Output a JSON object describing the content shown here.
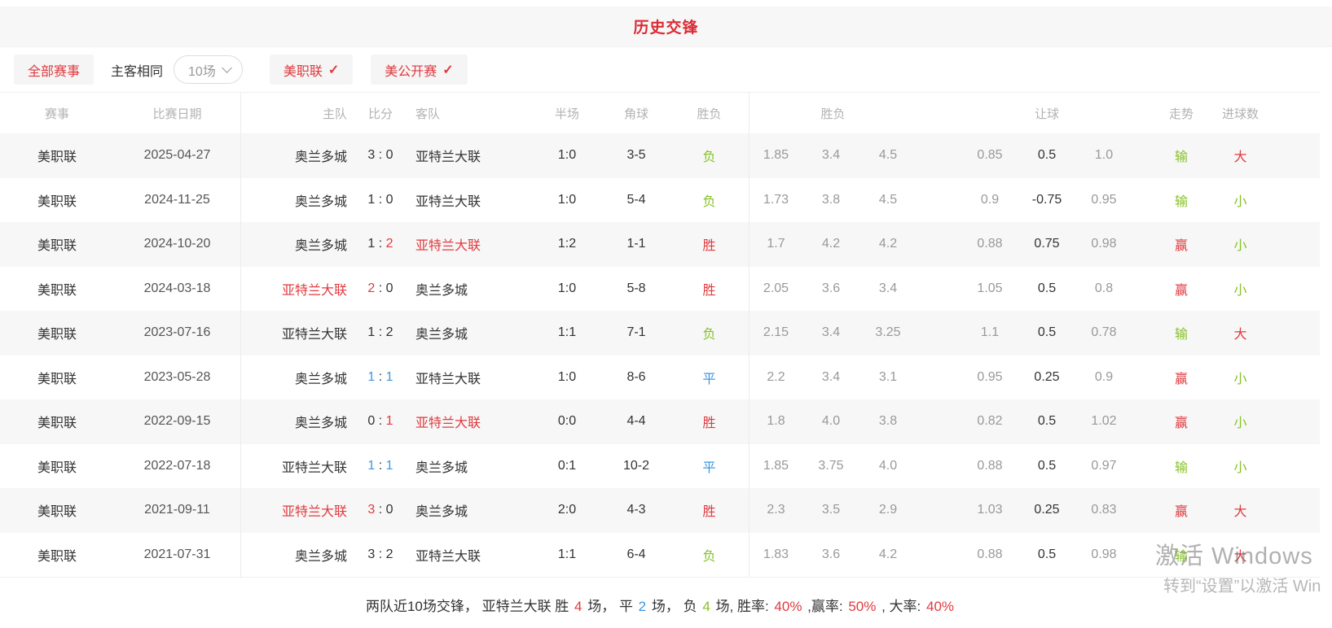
{
  "title": "历史交锋",
  "colors": {
    "red": "#e03a3f",
    "green": "#85c226",
    "blue": "#3d96e0",
    "accent_title": "#dc2b33"
  },
  "filters": {
    "all_matches": "全部赛事",
    "same_home_away": "主客相同",
    "count_dropdown_value": "10场",
    "league_mls": "美职联",
    "league_us_open": "美公开赛",
    "check_glyph": "✓"
  },
  "table": {
    "headers": {
      "league": "赛事",
      "date": "比赛日期",
      "home": "主队",
      "score": "比分",
      "away": "客队",
      "half": "半场",
      "corner": "角球",
      "result": "胜负",
      "odds_group": "胜负",
      "handicap_group": "让球",
      "trend": "走势",
      "goals": "进球数"
    },
    "rows": [
      {
        "league": "美职联",
        "date": "2025-04-27",
        "home": "奥兰多城",
        "home_color": "dark",
        "score": [
          "3",
          "0"
        ],
        "score_colors": [
          "dark",
          "dark"
        ],
        "away": "亚特兰大联",
        "away_color": "dark",
        "half": "1:0",
        "corner": "3-5",
        "result": "负",
        "result_color": "green",
        "win_odds": [
          "1.85",
          "3.4",
          "4.5"
        ],
        "handicap": [
          "0.85",
          "0.5",
          "1.0"
        ],
        "trend": "输",
        "trend_color": "green",
        "goals": "大",
        "goals_color": "red"
      },
      {
        "league": "美职联",
        "date": "2024-11-25",
        "home": "奥兰多城",
        "home_color": "dark",
        "score": [
          "1",
          "0"
        ],
        "score_colors": [
          "dark",
          "dark"
        ],
        "away": "亚特兰大联",
        "away_color": "dark",
        "half": "1:0",
        "corner": "5-4",
        "result": "负",
        "result_color": "green",
        "win_odds": [
          "1.73",
          "3.8",
          "4.5"
        ],
        "handicap": [
          "0.9",
          "-0.75",
          "0.95"
        ],
        "trend": "输",
        "trend_color": "green",
        "goals": "小",
        "goals_color": "green"
      },
      {
        "league": "美职联",
        "date": "2024-10-20",
        "home": "奥兰多城",
        "home_color": "dark",
        "score": [
          "1",
          "2"
        ],
        "score_colors": [
          "dark",
          "red"
        ],
        "away": "亚特兰大联",
        "away_color": "red",
        "half": "1:2",
        "corner": "1-1",
        "result": "胜",
        "result_color": "red",
        "win_odds": [
          "1.7",
          "4.2",
          "4.2"
        ],
        "handicap": [
          "0.88",
          "0.75",
          "0.98"
        ],
        "trend": "赢",
        "trend_color": "red",
        "goals": "小",
        "goals_color": "green"
      },
      {
        "league": "美职联",
        "date": "2024-03-18",
        "home": "亚特兰大联",
        "home_color": "red",
        "score": [
          "2",
          "0"
        ],
        "score_colors": [
          "red",
          "dark"
        ],
        "away": "奥兰多城",
        "away_color": "dark",
        "half": "1:0",
        "corner": "5-8",
        "result": "胜",
        "result_color": "red",
        "win_odds": [
          "2.05",
          "3.6",
          "3.4"
        ],
        "handicap": [
          "1.05",
          "0.5",
          "0.8"
        ],
        "trend": "赢",
        "trend_color": "red",
        "goals": "小",
        "goals_color": "green"
      },
      {
        "league": "美职联",
        "date": "2023-07-16",
        "home": "亚特兰大联",
        "home_color": "dark",
        "score": [
          "1",
          "2"
        ],
        "score_colors": [
          "dark",
          "dark"
        ],
        "away": "奥兰多城",
        "away_color": "dark",
        "half": "1:1",
        "corner": "7-1",
        "result": "负",
        "result_color": "green",
        "win_odds": [
          "2.15",
          "3.4",
          "3.25"
        ],
        "handicap": [
          "1.1",
          "0.5",
          "0.78"
        ],
        "trend": "输",
        "trend_color": "green",
        "goals": "大",
        "goals_color": "red"
      },
      {
        "league": "美职联",
        "date": "2023-05-28",
        "home": "奥兰多城",
        "home_color": "dark",
        "score": [
          "1",
          "1"
        ],
        "score_colors": [
          "blue",
          "blue"
        ],
        "away": "亚特兰大联",
        "away_color": "dark",
        "half": "1:0",
        "corner": "8-6",
        "result": "平",
        "result_color": "blue",
        "win_odds": [
          "2.2",
          "3.4",
          "3.1"
        ],
        "handicap": [
          "0.95",
          "0.25",
          "0.9"
        ],
        "trend": "赢",
        "trend_color": "red",
        "goals": "小",
        "goals_color": "green"
      },
      {
        "league": "美职联",
        "date": "2022-09-15",
        "home": "奥兰多城",
        "home_color": "dark",
        "score": [
          "0",
          "1"
        ],
        "score_colors": [
          "dark",
          "red"
        ],
        "away": "亚特兰大联",
        "away_color": "red",
        "half": "0:0",
        "corner": "4-4",
        "result": "胜",
        "result_color": "red",
        "win_odds": [
          "1.8",
          "4.0",
          "3.8"
        ],
        "handicap": [
          "0.82",
          "0.5",
          "1.02"
        ],
        "trend": "赢",
        "trend_color": "red",
        "goals": "小",
        "goals_color": "green"
      },
      {
        "league": "美职联",
        "date": "2022-07-18",
        "home": "亚特兰大联",
        "home_color": "dark",
        "score": [
          "1",
          "1"
        ],
        "score_colors": [
          "blue",
          "blue"
        ],
        "away": "奥兰多城",
        "away_color": "dark",
        "half": "0:1",
        "corner": "10-2",
        "result": "平",
        "result_color": "blue",
        "win_odds": [
          "1.85",
          "3.75",
          "4.0"
        ],
        "handicap": [
          "0.88",
          "0.5",
          "0.97"
        ],
        "trend": "输",
        "trend_color": "green",
        "goals": "小",
        "goals_color": "green"
      },
      {
        "league": "美职联",
        "date": "2021-09-11",
        "home": "亚特兰大联",
        "home_color": "red",
        "score": [
          "3",
          "0"
        ],
        "score_colors": [
          "red",
          "dark"
        ],
        "away": "奥兰多城",
        "away_color": "dark",
        "half": "2:0",
        "corner": "4-3",
        "result": "胜",
        "result_color": "red",
        "win_odds": [
          "2.3",
          "3.5",
          "2.9"
        ],
        "handicap": [
          "1.03",
          "0.25",
          "0.83"
        ],
        "trend": "赢",
        "trend_color": "red",
        "goals": "大",
        "goals_color": "red"
      },
      {
        "league": "美职联",
        "date": "2021-07-31",
        "home": "奥兰多城",
        "home_color": "dark",
        "score": [
          "3",
          "2"
        ],
        "score_colors": [
          "dark",
          "dark"
        ],
        "away": "亚特兰大联",
        "away_color": "dark",
        "half": "1:1",
        "corner": "6-4",
        "result": "负",
        "result_color": "green",
        "win_odds": [
          "1.83",
          "3.6",
          "4.2"
        ],
        "handicap": [
          "0.88",
          "0.5",
          "0.98"
        ],
        "trend": "输",
        "trend_color": "green",
        "goals": "大",
        "goals_color": "red"
      }
    ]
  },
  "summary_segments": [
    {
      "text": "两队近10场交锋，  亚特兰大联 胜 ",
      "color": "dark"
    },
    {
      "text": "4",
      "color": "red"
    },
    {
      "text": " 场，  平 ",
      "color": "dark"
    },
    {
      "text": "2",
      "color": "blue"
    },
    {
      "text": " 场，  负 ",
      "color": "dark"
    },
    {
      "text": "4",
      "color": "green"
    },
    {
      "text": " 场, 胜率:  ",
      "color": "dark"
    },
    {
      "text": "40%",
      "color": "red"
    },
    {
      "text": " ,赢率:  ",
      "color": "dark"
    },
    {
      "text": "50%",
      "color": "red"
    },
    {
      "text": " , 大率:  ",
      "color": "dark"
    },
    {
      "text": "40%",
      "color": "red"
    }
  ],
  "watermark": {
    "line1": "激活 Windows",
    "line2": "转到“设置”以激活 Win"
  }
}
